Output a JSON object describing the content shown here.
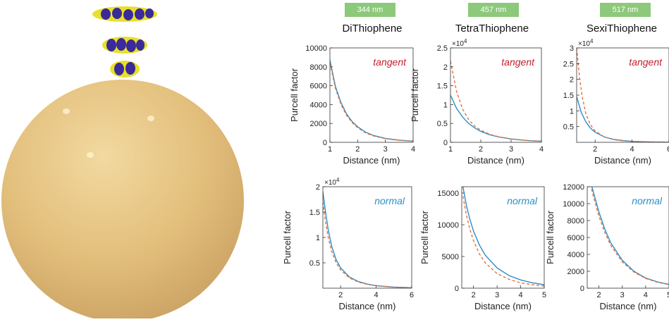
{
  "colors": {
    "solid_line": "#2a8fc9",
    "dashed_line": "#e8703a",
    "tangent_label": "#c0202c",
    "normal_label": "#2a8fc9",
    "badge": "#8cc97a",
    "sphere": "#e8c888"
  },
  "columns": [
    {
      "badge": "344 nm",
      "title": "DiThiophene"
    },
    {
      "badge": "457 nm",
      "title": "TetraThiophene"
    },
    {
      "badge": "517 nm",
      "title": "SexiThiophene"
    }
  ],
  "illustration": {
    "description_icon": "molecules-above-gold-sphere"
  },
  "chart_data": [
    {
      "type": "line",
      "row": "tangent",
      "column": "DiThiophene",
      "annotation": "tangent",
      "xlabel": "Distance (nm)",
      "ylabel": "Purcell factor",
      "xlim": [
        1,
        4
      ],
      "ylim": [
        0,
        10000
      ],
      "xticks": [
        "1",
        "2",
        "3",
        "4"
      ],
      "yticks": [
        "0",
        "2000",
        "4000",
        "6000",
        "8000",
        "10000"
      ],
      "multiplier": "",
      "series": [
        {
          "style": "solid",
          "x": [
            1,
            1.2,
            1.4,
            1.6,
            1.8,
            2,
            2.3,
            2.6,
            3,
            3.5,
            4
          ],
          "y": [
            8700,
            5900,
            4200,
            3000,
            2200,
            1650,
            1050,
            700,
            420,
            230,
            130
          ]
        },
        {
          "style": "dashed",
          "x": [
            1,
            1.2,
            1.4,
            1.6,
            1.8,
            2,
            2.3,
            2.6,
            3,
            3.5,
            4
          ],
          "y": [
            8400,
            5700,
            4000,
            2850,
            2100,
            1550,
            980,
            650,
            390,
            210,
            120
          ]
        }
      ]
    },
    {
      "type": "line",
      "row": "tangent",
      "column": "TetraThiophene",
      "annotation": "tangent",
      "xlabel": "Distance (nm)",
      "ylabel": "Purcell factor",
      "xlim": [
        1,
        4
      ],
      "ylim": [
        0,
        25000
      ],
      "xticks": [
        "1",
        "2",
        "3",
        "4"
      ],
      "yticks": [
        "0",
        "0.5",
        "1",
        "1.5",
        "2",
        "2.5"
      ],
      "multiplier": "×10",
      "multiplier_exp": "4",
      "series": [
        {
          "style": "solid",
          "x": [
            1,
            1.2,
            1.4,
            1.6,
            1.8,
            2,
            2.3,
            2.6,
            3,
            3.5,
            4
          ],
          "y": [
            12500,
            9000,
            6700,
            5000,
            3800,
            2900,
            2000,
            1400,
            900,
            500,
            300
          ]
        },
        {
          "style": "dashed",
          "x": [
            1,
            1.2,
            1.4,
            1.6,
            1.8,
            2,
            2.3,
            2.6,
            3,
            3.5,
            4
          ],
          "y": [
            21500,
            13500,
            8800,
            6000,
            4300,
            3200,
            2100,
            1450,
            900,
            480,
            280
          ]
        }
      ]
    },
    {
      "type": "line",
      "row": "tangent",
      "column": "SexiThiophene",
      "annotation": "tangent",
      "xlabel": "Distance (nm)",
      "ylabel": "",
      "xlim": [
        1,
        6
      ],
      "ylim": [
        0,
        30000
      ],
      "xticks": [
        "2",
        "4",
        "6"
      ],
      "yticks": [
        "0.5",
        "1",
        "1.5",
        "2",
        "2.5",
        "3"
      ],
      "multiplier": "×10",
      "multiplier_exp": "4",
      "series": [
        {
          "style": "solid",
          "x": [
            1,
            1.25,
            1.5,
            1.75,
            2,
            2.5,
            3,
            3.5,
            4,
            5,
            6
          ],
          "y": [
            14500,
            9500,
            6500,
            4500,
            3200,
            1700,
            950,
            550,
            320,
            130,
            60
          ]
        },
        {
          "style": "dashed",
          "x": [
            1,
            1.15,
            1.3,
            1.5,
            1.75,
            2,
            2.5,
            3,
            3.5,
            4,
            5,
            6
          ],
          "y": [
            30000,
            21000,
            14500,
            9000,
            5600,
            3600,
            1700,
            850,
            450,
            250,
            90,
            40
          ]
        }
      ]
    },
    {
      "type": "line",
      "row": "normal",
      "column": "DiThiophene",
      "annotation": "normal",
      "xlabel": "Distance (nm)",
      "ylabel": "Purcell factor",
      "xlim": [
        1,
        6
      ],
      "ylim": [
        0,
        20000
      ],
      "xticks": [
        "2",
        "4",
        "6"
      ],
      "yticks": [
        "0.5",
        "1",
        "1.5",
        "2"
      ],
      "multiplier": "×10",
      "multiplier_exp": "4",
      "series": [
        {
          "style": "solid",
          "x": [
            1,
            1.15,
            1.3,
            1.5,
            1.75,
            2,
            2.5,
            3,
            3.5,
            4,
            5,
            6
          ],
          "y": [
            19000,
            15000,
            11500,
            8200,
            5600,
            4000,
            2200,
            1300,
            800,
            500,
            220,
            100
          ]
        },
        {
          "style": "dashed",
          "x": [
            1,
            1.15,
            1.3,
            1.5,
            1.75,
            2,
            2.5,
            3,
            3.5,
            4,
            5,
            6
          ],
          "y": [
            17000,
            13000,
            10000,
            7200,
            5000,
            3600,
            2000,
            1200,
            750,
            470,
            200,
            90
          ]
        }
      ]
    },
    {
      "type": "line",
      "row": "normal",
      "column": "TetraThiophene",
      "annotation": "normal",
      "xlabel": "Distance (nm)",
      "ylabel": "Purcell factor",
      "xlim": [
        1.5,
        5
      ],
      "ylim": [
        0,
        16000
      ],
      "xticks": [
        "2",
        "3",
        "4",
        "5"
      ],
      "yticks": [
        "0",
        "5000",
        "10000",
        "15000"
      ],
      "multiplier": "",
      "series": [
        {
          "style": "solid",
          "x": [
            1.55,
            1.7,
            1.85,
            2,
            2.25,
            2.5,
            3,
            3.5,
            4,
            4.5,
            5
          ],
          "y": [
            16000,
            13000,
            10800,
            9000,
            6800,
            5200,
            3200,
            2000,
            1300,
            850,
            550
          ]
        },
        {
          "style": "dashed",
          "x": [
            1.55,
            1.7,
            1.85,
            2,
            2.25,
            2.5,
            3,
            3.5,
            4,
            4.5,
            5
          ],
          "y": [
            14500,
            11500,
            9200,
            7500,
            5400,
            4000,
            2300,
            1400,
            850,
            550,
            350
          ]
        }
      ]
    },
    {
      "type": "line",
      "row": "normal",
      "column": "SexiThiophene",
      "annotation": "normal",
      "xlabel": "Distance (nm)",
      "ylabel": "Purcell factor",
      "xlim": [
        1.5,
        5
      ],
      "ylim": [
        0,
        12000
      ],
      "xticks": [
        "2",
        "3",
        "4",
        "5"
      ],
      "yticks": [
        "0",
        "2000",
        "4000",
        "6000",
        "8000",
        "10000",
        "12000"
      ],
      "multiplier": "",
      "series": [
        {
          "style": "solid",
          "x": [
            1.5,
            1.75,
            2,
            2.25,
            2.5,
            3,
            3.5,
            4,
            4.5,
            5
          ],
          "y": [
            14000,
            11500,
            9000,
            7000,
            5400,
            3300,
            2000,
            1200,
            750,
            450
          ]
        },
        {
          "style": "dashed",
          "x": [
            1.5,
            1.75,
            2,
            2.25,
            2.5,
            3,
            3.5,
            4,
            4.5,
            5
          ],
          "y": [
            14000,
            11000,
            8500,
            6600,
            5100,
            3100,
            1900,
            1150,
            700,
            420
          ]
        }
      ]
    }
  ]
}
